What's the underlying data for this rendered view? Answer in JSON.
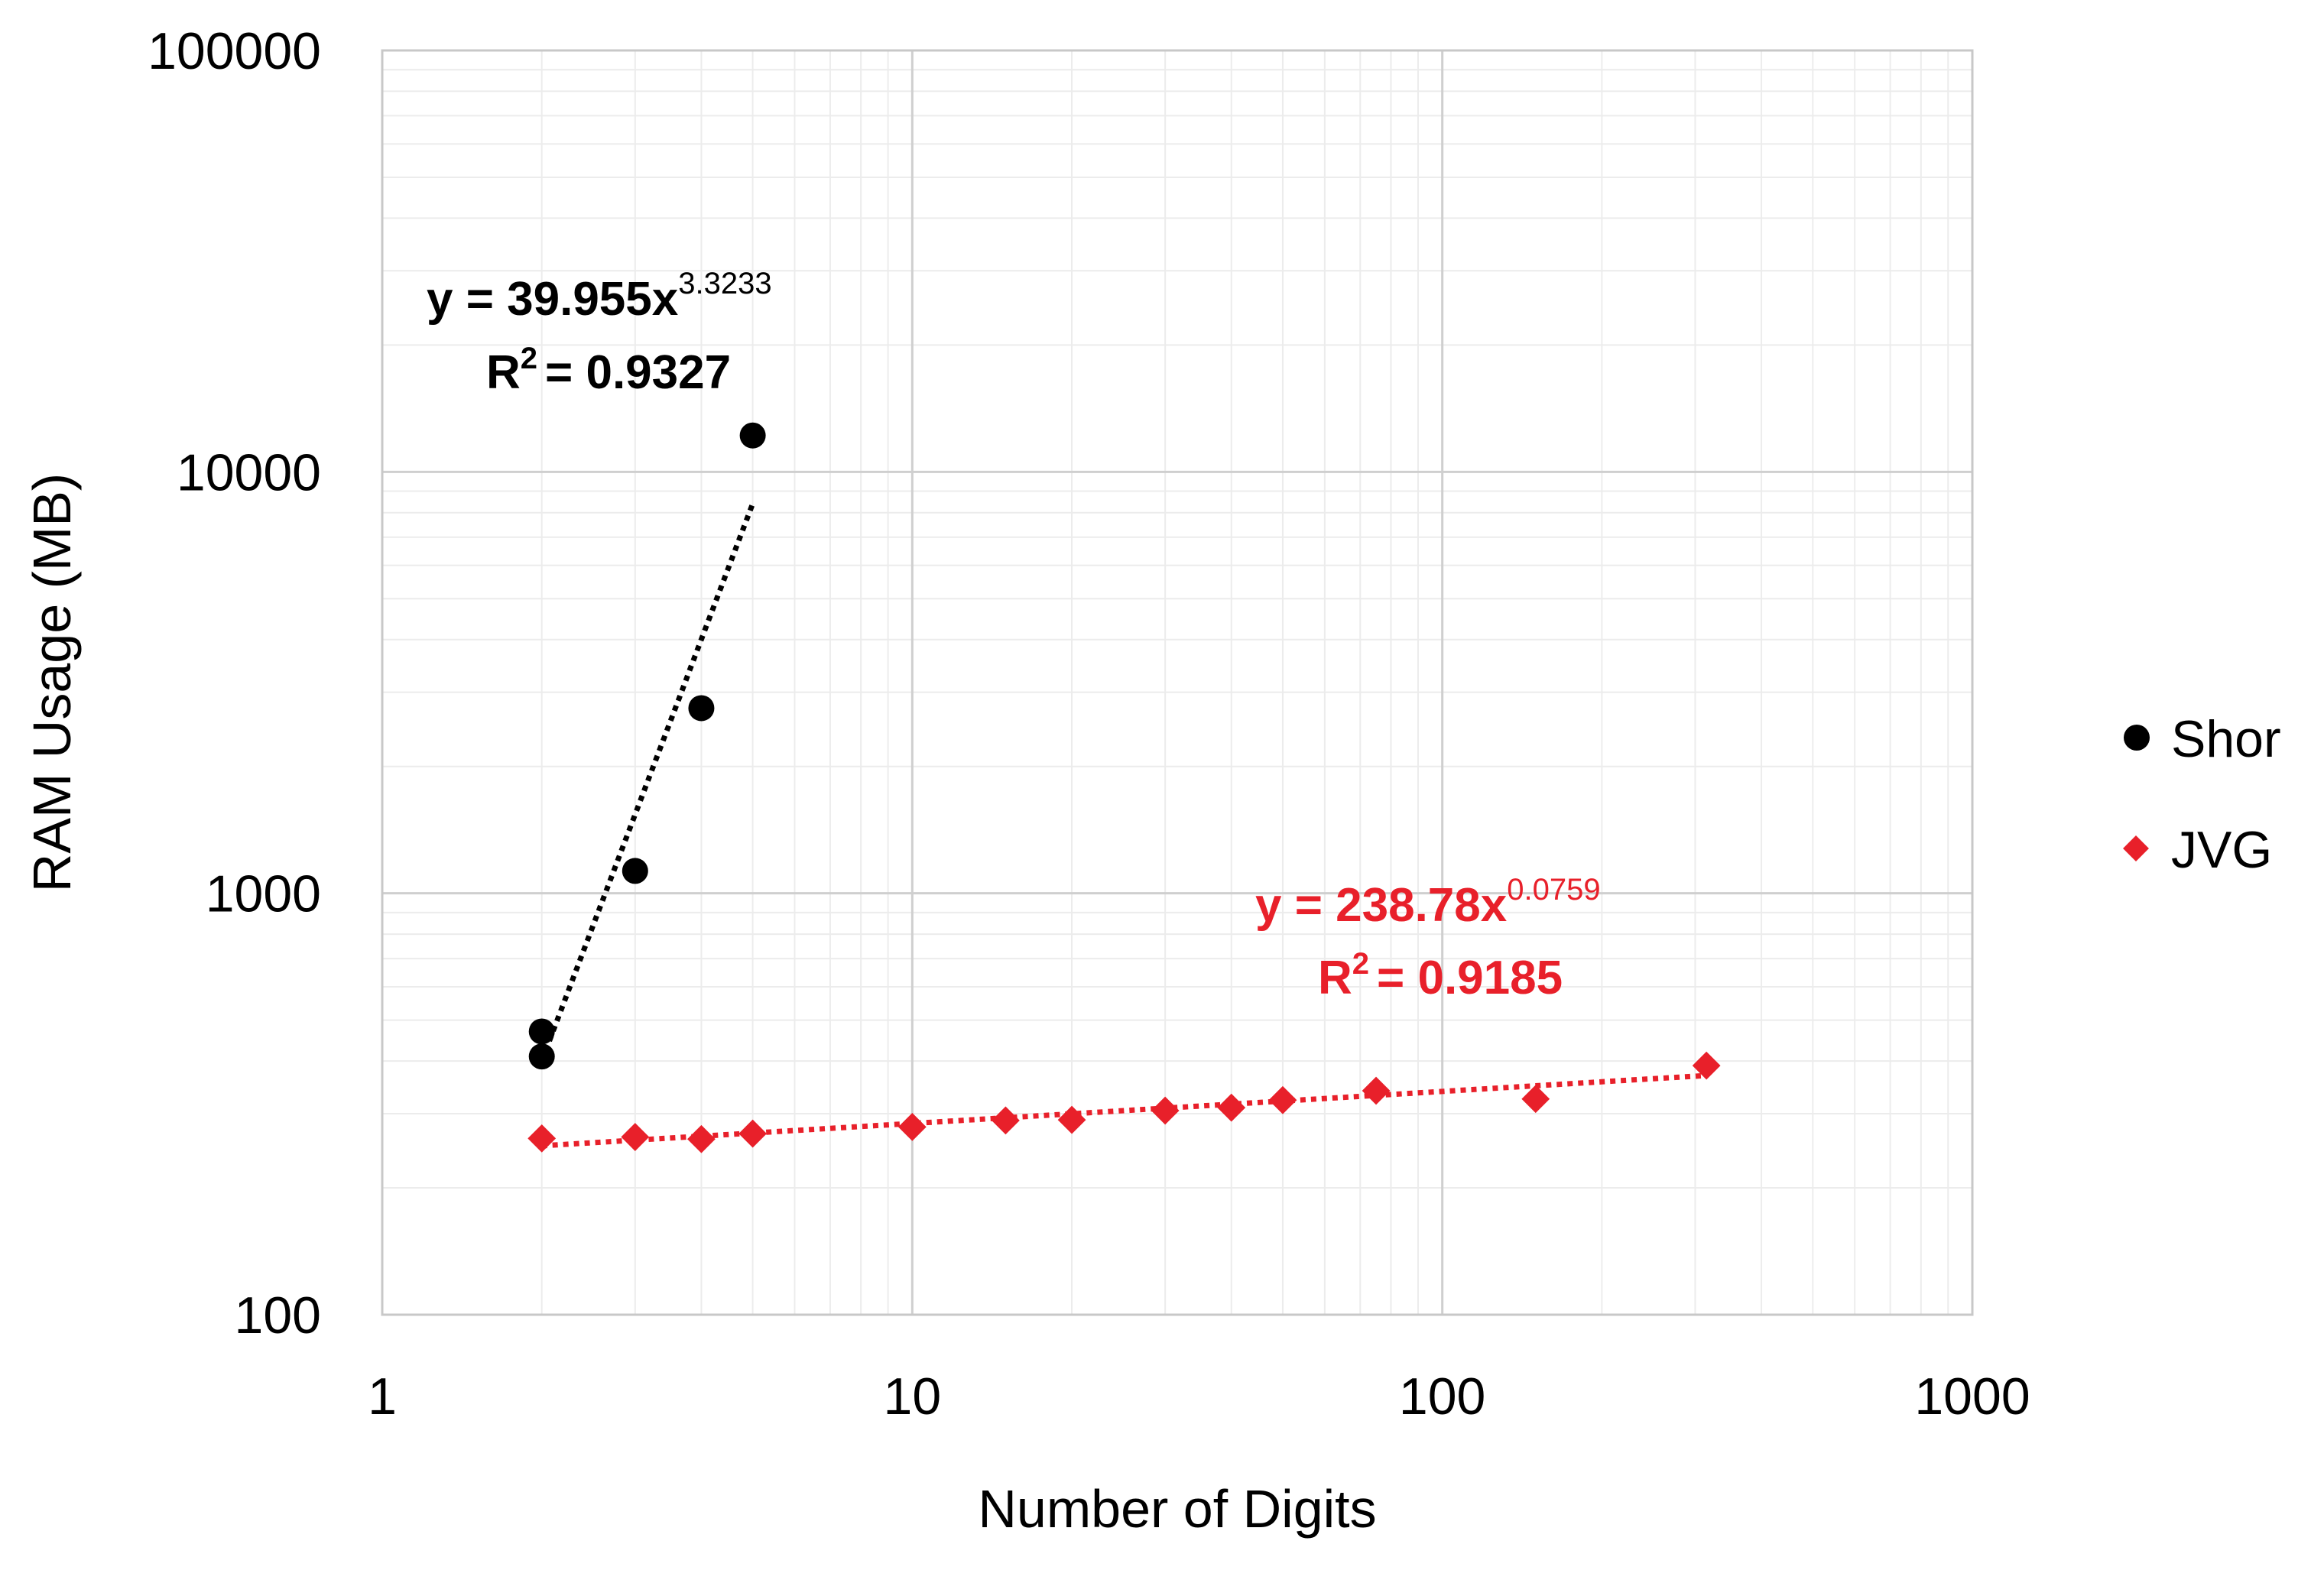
{
  "chart_data": {
    "type": "scatter",
    "xlabel": "Number of Digits",
    "ylabel": "RAM Usage (MB)",
    "x_scale": "log",
    "y_scale": "log",
    "xlim": [
      1,
      1000
    ],
    "ylim": [
      100,
      100000
    ],
    "x_ticks": [
      "1",
      "10",
      "100",
      "1000"
    ],
    "y_ticks": [
      "100",
      "1000",
      "10000",
      "100000"
    ],
    "grid": true,
    "legend_position": "right",
    "series": [
      {
        "name": "Shor",
        "color": "#000000",
        "marker": "circle",
        "points": [
          [
            2,
            410
          ],
          [
            2,
            470
          ],
          [
            3,
            1130
          ],
          [
            4,
            2750
          ],
          [
            5,
            12200
          ]
        ],
        "trendline": {
          "type": "power",
          "coef": 39.955,
          "exp": 3.3233,
          "equation": "y = 39.955x",
          "exponent_text": "3.3233",
          "r2_text": "= 0.9327",
          "x_range": [
            2,
            5
          ]
        }
      },
      {
        "name": "JVG",
        "color": "#e8202a",
        "marker": "diamond",
        "points": [
          [
            2,
            262
          ],
          [
            3,
            264
          ],
          [
            4,
            261
          ],
          [
            5,
            269
          ],
          [
            10,
            279
          ],
          [
            15,
            289
          ],
          [
            20,
            290
          ],
          [
            30,
            305
          ],
          [
            40,
            310
          ],
          [
            50,
            323
          ],
          [
            75,
            340
          ],
          [
            150,
            325
          ],
          [
            315,
            390
          ]
        ],
        "trendline": {
          "type": "power",
          "coef": 238.78,
          "exp": 0.0759,
          "equation": "y = 238.78x",
          "exponent_text": "0.0759",
          "r2_text": "= 0.9185",
          "x_range": [
            2,
            315
          ]
        }
      }
    ]
  }
}
